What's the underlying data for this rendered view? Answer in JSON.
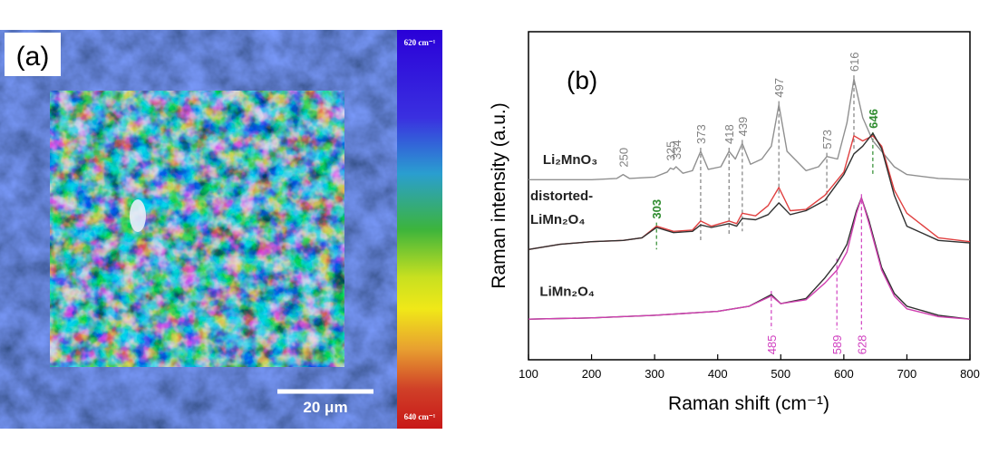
{
  "panel_a": {
    "label": "(a)",
    "colorbar_top": "620 cm⁻¹",
    "colorbar_bottom": "640 cm⁻¹",
    "scale_bar": "20 μm",
    "colorbar_colors": [
      "#2a00d8",
      "#3a30e0",
      "#2a9ed0",
      "#3cb43c",
      "#c8e020",
      "#f0e818",
      "#e8a030",
      "#d04028",
      "#c81818"
    ]
  },
  "chart_data": {
    "type": "line",
    "panel_label": "(b)",
    "xlabel": "Raman shift (cm⁻¹)",
    "ylabel": "Raman intensity (a.u.)",
    "xlim": [
      100,
      800
    ],
    "xticks": [
      100,
      200,
      300,
      400,
      500,
      600,
      700,
      800
    ],
    "ylim": [
      0,
      100
    ],
    "grid": false,
    "series": [
      {
        "name": "Li₂MnO₃",
        "color": "#909090",
        "x": [
          100,
          200,
          240,
          250,
          260,
          300,
          320,
          325,
          330,
          334,
          345,
          360,
          373,
          385,
          405,
          418,
          428,
          439,
          452,
          470,
          485,
          497,
          510,
          540,
          560,
          573,
          590,
          605,
          616,
          630,
          646,
          660,
          680,
          700,
          750,
          800
        ],
        "values": [
          62,
          62,
          62.5,
          64,
          62.5,
          63,
          65,
          66.5,
          66,
          67,
          64.5,
          65.5,
          73,
          66,
          67,
          73,
          70,
          76,
          68,
          70,
          75,
          91,
          73,
          65.5,
          67,
          71,
          70,
          84,
          101,
          86,
          77,
          73,
          67,
          64,
          62.5,
          62
        ]
      },
      {
        "name": "distorted-LiMn₂O₄ (red)",
        "color": "#e04040",
        "x": [
          100,
          150,
          200,
          250,
          280,
          303,
          330,
          360,
          373,
          390,
          418,
          430,
          439,
          460,
          480,
          497,
          515,
          540,
          570,
          600,
          616,
          630,
          646,
          660,
          680,
          700,
          750,
          800
        ],
        "values": [
          35,
          37,
          38,
          38.5,
          39.5,
          44,
          42,
          42.5,
          46,
          44,
          46,
          45,
          49,
          48,
          52,
          59,
          50,
          50.5,
          56,
          65,
          79,
          77,
          79,
          75,
          58,
          49,
          39.5,
          38
        ]
      },
      {
        "name": "distorted-LiMn₂O₄ (black)",
        "color": "#303030",
        "x": [
          100,
          150,
          200,
          250,
          280,
          303,
          330,
          360,
          373,
          390,
          418,
          430,
          439,
          460,
          480,
          497,
          515,
          540,
          570,
          600,
          616,
          630,
          646,
          660,
          680,
          700,
          750,
          800
        ],
        "values": [
          35,
          37,
          38,
          38.5,
          39.5,
          43.5,
          41.5,
          42,
          44.5,
          43.5,
          45,
          44,
          47,
          46.5,
          48.5,
          53,
          48.5,
          50,
          54,
          64,
          72,
          75,
          80,
          74,
          56,
          44,
          38.5,
          37.5
        ]
      },
      {
        "name": "LiMn₂O₄ (black)",
        "color": "#303030",
        "x": [
          100,
          200,
          300,
          400,
          450,
          485,
          500,
          540,
          570,
          589,
          605,
          620,
          628,
          640,
          660,
          680,
          700,
          750,
          800
        ],
        "values": [
          8,
          8.5,
          9.5,
          11,
          13,
          17.5,
          14,
          16,
          24,
          30,
          37,
          50,
          55,
          46,
          28,
          18,
          13,
          9.5,
          8
        ]
      },
      {
        "name": "LiMn₂O₄ (magenta)",
        "color": "#d040b0",
        "x": [
          100,
          200,
          300,
          400,
          450,
          485,
          500,
          540,
          570,
          589,
          605,
          620,
          628,
          640,
          660,
          680,
          700,
          750,
          800
        ],
        "values": [
          8,
          8.5,
          9.5,
          11,
          13,
          17,
          14,
          15.5,
          22,
          27,
          34,
          49,
          55,
          45,
          27,
          17,
          12,
          9,
          8
        ]
      }
    ],
    "spectrum_labels": [
      {
        "text": "Li₂MnO₃",
        "x": 120,
        "y": 68
      },
      {
        "text": "distorted-",
        "x": 100,
        "y": 54
      },
      {
        "text": "LiMn₂O₄",
        "x": 100,
        "y": 45
      },
      {
        "text": "LiMn₂O₄",
        "x": 115,
        "y": 17
      }
    ],
    "peak_annotations": [
      {
        "text": "250",
        "x": 250,
        "y": 64,
        "color": "#808080",
        "dash": false
      },
      {
        "text": "325",
        "x": 325,
        "y": 66.5,
        "color": "#808080",
        "dash": false
      },
      {
        "text": "334",
        "x": 334,
        "y": 67,
        "color": "#808080",
        "dash": false
      },
      {
        "text": "373",
        "x": 373,
        "y": 73,
        "color": "#808080",
        "dash": true,
        "y_to": 38
      },
      {
        "text": "418",
        "x": 418,
        "y": 73,
        "color": "#808080",
        "dash": true,
        "y_to": 40
      },
      {
        "text": "439",
        "x": 439,
        "y": 76,
        "color": "#808080",
        "dash": true,
        "y_to": 42
      },
      {
        "text": "497",
        "x": 497,
        "y": 91,
        "color": "#808080",
        "dash": true,
        "y_to": 55
      },
      {
        "text": "573",
        "x": 573,
        "y": 71,
        "color": "#808080",
        "dash": true,
        "y_to": 52
      },
      {
        "text": "616",
        "x": 616,
        "y": 101,
        "color": "#808080",
        "dash": true,
        "y_to": 74
      },
      {
        "text": "646",
        "x": 646,
        "y": 79,
        "color": "#2e8b2e",
        "dash": true,
        "y_to": 64
      },
      {
        "text": "303",
        "x": 303,
        "y": 44,
        "color": "#2e8b2e",
        "dash": true,
        "y_to": 35
      },
      {
        "text": "485",
        "x": 485,
        "y": 17.5,
        "color": "#d040c0",
        "dash": true,
        "y_to": 4
      },
      {
        "text": "589",
        "x": 589,
        "y": 30,
        "color": "#d040c0",
        "dash": true,
        "y_to": 4
      },
      {
        "text": "628",
        "x": 628,
        "y": 55,
        "color": "#d040c0",
        "dash": true,
        "y_to": 4
      }
    ]
  }
}
